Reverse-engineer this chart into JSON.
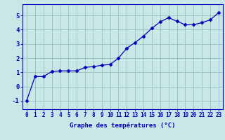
{
  "x": [
    0,
    1,
    2,
    3,
    4,
    5,
    6,
    7,
    8,
    9,
    10,
    11,
    12,
    13,
    14,
    15,
    16,
    17,
    18,
    19,
    20,
    21,
    22,
    23
  ],
  "y": [
    -1.0,
    0.7,
    0.7,
    1.05,
    1.1,
    1.1,
    1.1,
    1.35,
    1.4,
    1.5,
    1.55,
    2.0,
    2.7,
    3.1,
    3.55,
    4.1,
    4.55,
    4.85,
    4.6,
    4.35,
    4.35,
    4.5,
    4.7,
    5.2
  ],
  "line_color": "#0000bb",
  "marker": "D",
  "marker_size": 2.5,
  "xlabel": "Graphe des températures (°C)",
  "xlabel_fontsize": 6.5,
  "ylabel_ticks": [
    -1,
    0,
    1,
    2,
    3,
    4,
    5
  ],
  "xtick_labels": [
    "0",
    "1",
    "2",
    "3",
    "4",
    "5",
    "6",
    "7",
    "8",
    "9",
    "10",
    "11",
    "12",
    "13",
    "14",
    "15",
    "16",
    "17",
    "18",
    "19",
    "20",
    "21",
    "22",
    "23"
  ],
  "bg_color": "#c8e8e8",
  "grid_color": "#a0c4c4",
  "tick_color": "#0000bb",
  "xlim": [
    -0.5,
    23.5
  ],
  "ylim": [
    -1.6,
    5.8
  ],
  "spine_color": "#0000bb",
  "line_width": 0.9,
  "tick_fontsize": 5.5,
  "ytick_fontsize": 6.5
}
